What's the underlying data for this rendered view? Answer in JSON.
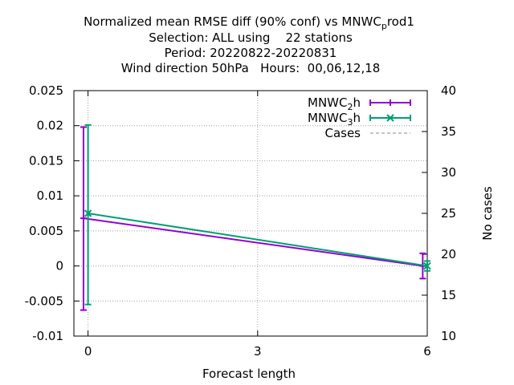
{
  "chart_data": {
    "type": "line",
    "title_lines": [
      "Normalized mean RMSE diff (90% conf) vs MNWC_prod1",
      "Selection: ALL using    22 stations",
      "Period: 20220822-20220831",
      "Wind direction 50hPa   Hours:  00,06,12,18"
    ],
    "xlabel": "Forecast length",
    "ylabel": "",
    "y2label": "No cases",
    "xlim": [
      -0.25,
      6
    ],
    "ylim": [
      -0.01,
      0.025
    ],
    "y2lim": [
      10,
      40
    ],
    "xticks": [
      "0",
      "3",
      "6"
    ],
    "yticks": [
      "-0.01",
      "-0.005",
      "0",
      "0.005",
      "0.01",
      "0.015",
      "0.02",
      "0.025"
    ],
    "y2ticks": [
      "10",
      "15",
      "20",
      "25",
      "30",
      "35",
      "40"
    ],
    "grid": true,
    "legend_position": "top-right",
    "series": [
      {
        "name": "MNWC_2h",
        "color": "#9400d3",
        "marker": "plus",
        "x": [
          -0.08,
          5.92
        ],
        "y": [
          0.0068,
          0.0
        ],
        "err_low": [
          -0.0063,
          -0.0018
        ],
        "err_high": [
          0.0198,
          0.0018
        ]
      },
      {
        "name": "MNWC_3h",
        "color": "#009e73",
        "marker": "x",
        "x": [
          0.0,
          6.0
        ],
        "y": [
          0.0075,
          0.0
        ],
        "err_low": [
          -0.0055,
          -0.0007
        ],
        "err_high": [
          0.0201,
          0.0007
        ]
      },
      {
        "name": "Cases",
        "color": "#a0a0a0",
        "marker": "dashed",
        "axis": "y2",
        "x": [],
        "y": []
      }
    ]
  }
}
